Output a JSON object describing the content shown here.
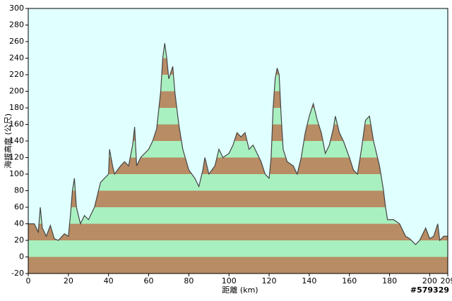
{
  "chart_data": {
    "type": "area",
    "x_label": "距離 (km)",
    "y_label": "海拔高度 (公尺)",
    "annotation": "#579329",
    "xlim": [
      0,
      209
    ],
    "xticks": [
      0,
      20,
      40,
      60,
      80,
      100,
      120,
      140,
      160,
      180,
      200,
      209
    ],
    "ylim": [
      -20,
      300
    ],
    "yticks": [
      -20,
      0,
      20,
      40,
      60,
      80,
      100,
      120,
      140,
      160,
      180,
      200,
      220,
      240,
      260,
      280,
      300
    ],
    "background": "#e0ffff",
    "band_colors": [
      "#a8f0c0",
      "#b88c64"
    ],
    "line_color": "#444444",
    "x": [
      0,
      3,
      5,
      6,
      7,
      9,
      11,
      13,
      15,
      18,
      20,
      21,
      22,
      23,
      24,
      26,
      28,
      30,
      33,
      35,
      36,
      38,
      40,
      40.5,
      42,
      43,
      46,
      48,
      50,
      52,
      53,
      54,
      56,
      58,
      60,
      62,
      64,
      66,
      67,
      68,
      69,
      70,
      72,
      73,
      75,
      77,
      80,
      83,
      85,
      87,
      88,
      90,
      93,
      95,
      97,
      100,
      102,
      104,
      106,
      108,
      110,
      112,
      114,
      116,
      118,
      120,
      121,
      122,
      123,
      124,
      125,
      126,
      127,
      129,
      132,
      134,
      136,
      138,
      140,
      142,
      144,
      146,
      148,
      150,
      152,
      153,
      155,
      157,
      160,
      162,
      164,
      166,
      168,
      170,
      172,
      175,
      177,
      178,
      179,
      182,
      185,
      188,
      190,
      193,
      195,
      198,
      200,
      202,
      204,
      205,
      207,
      209
    ],
    "values": [
      40,
      40,
      30,
      60,
      35,
      25,
      38,
      22,
      20,
      28,
      25,
      50,
      80,
      95,
      60,
      40,
      50,
      45,
      60,
      80,
      90,
      95,
      100,
      130,
      110,
      100,
      110,
      115,
      110,
      135,
      157,
      110,
      120,
      125,
      130,
      140,
      155,
      200,
      240,
      258,
      240,
      215,
      230,
      200,
      160,
      130,
      105,
      95,
      85,
      105,
      120,
      100,
      110,
      130,
      120,
      125,
      135,
      150,
      145,
      150,
      130,
      135,
      125,
      115,
      100,
      95,
      120,
      180,
      215,
      228,
      220,
      170,
      130,
      115,
      110,
      100,
      120,
      150,
      170,
      185,
      165,
      150,
      125,
      135,
      155,
      170,
      150,
      140,
      120,
      105,
      100,
      130,
      165,
      170,
      140,
      110,
      80,
      60,
      45,
      45,
      40,
      25,
      22,
      15,
      20,
      35,
      22,
      25,
      40,
      20,
      25,
      25
    ]
  }
}
